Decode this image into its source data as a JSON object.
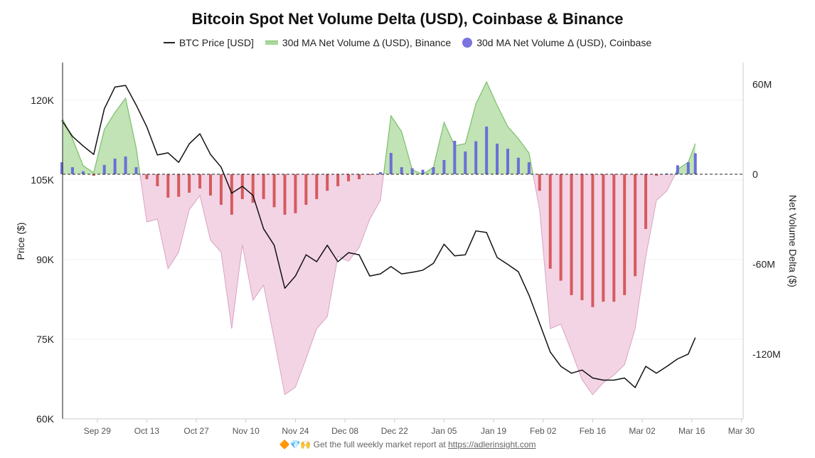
{
  "chart_data": {
    "type": "bar+area+line",
    "title": "Bitcoin Spot Net Volume Delta (USD), Coinbase & Binance",
    "legend_position": "top",
    "legend": [
      {
        "name": "BTC Price [USD]",
        "symbol": "line",
        "color": "#111111"
      },
      {
        "name": "30d MA Net Volume Δ (USD), Binance",
        "symbol": "area",
        "color": "#8cc97a"
      },
      {
        "name": "30d MA Net Volume Δ (USD), Coinbase",
        "symbol": "dot",
        "color": "#7b73e0"
      }
    ],
    "ylabel_left": "Price ($)",
    "ylabel_right": "Net Volume Delta ($)",
    "ylim_left": [
      60000,
      128000
    ],
    "ylim_right": [
      -160000000,
      67000000
    ],
    "y_ticks_left": [
      "60K",
      "75K",
      "90K",
      "105K",
      "120K"
    ],
    "y_ticks_right": [
      "-120M",
      "-60M",
      "0",
      "60M"
    ],
    "x_ticks": [
      "Sep 29",
      "Oct 13",
      "Oct 27",
      "Nov 10",
      "Nov 24",
      "Dec 08",
      "Dec 22",
      "Jan 05",
      "Jan 19",
      "Feb 02",
      "Feb 16",
      "Mar 02",
      "Mar 16",
      "Mar 30"
    ],
    "grid": "horizontal",
    "colors": {
      "price": "#111111",
      "binance_pos_fill": "#b6dea8",
      "binance_pos_stroke": "#7cbf6a",
      "binance_neg_fill": "#f2cfe2",
      "binance_neg_stroke": "#d9a3c3",
      "coinbase_pos": "#6b6fd6",
      "coinbase_neg": "#d65a5e"
    },
    "x": [
      "Sep 19",
      "Sep 22",
      "Sep 25",
      "Sep 28",
      "Oct 01",
      "Oct 04",
      "Oct 07",
      "Oct 10",
      "Oct 13",
      "Oct 16",
      "Oct 19",
      "Oct 22",
      "Oct 25",
      "Oct 28",
      "Oct 31",
      "Nov 03",
      "Nov 06",
      "Nov 09",
      "Nov 12",
      "Nov 15",
      "Nov 18",
      "Nov 21",
      "Nov 24",
      "Nov 27",
      "Nov 30",
      "Dec 03",
      "Dec 06",
      "Dec 09",
      "Dec 12",
      "Dec 15",
      "Dec 18",
      "Dec 21",
      "Dec 24",
      "Dec 27",
      "Dec 30",
      "Jan 02",
      "Jan 05",
      "Jan 08",
      "Jan 11",
      "Jan 14",
      "Jan 17",
      "Jan 20",
      "Jan 23",
      "Jan 26",
      "Jan 29",
      "Feb 01",
      "Feb 04",
      "Feb 07",
      "Feb 10",
      "Feb 13",
      "Feb 16",
      "Feb 19",
      "Feb 22",
      "Feb 25",
      "Feb 28",
      "Mar 03",
      "Mar 06",
      "Mar 09",
      "Mar 12",
      "Mar 15",
      "Mar 17"
    ],
    "series": [
      {
        "name": "BTC Price [USD]",
        "axis": "left",
        "unit": "USD",
        "values": [
          116200,
          113200,
          111400,
          109800,
          118400,
          122500,
          122800,
          119100,
          115000,
          109700,
          110100,
          108300,
          111800,
          113700,
          109800,
          107400,
          102500,
          103800,
          102100,
          95800,
          92700,
          84600,
          86900,
          90900,
          89600,
          92700,
          89600,
          91300,
          90900,
          86900,
          87300,
          88700,
          87300,
          87600,
          88000,
          89300,
          92900,
          90700,
          90900,
          95400,
          95100,
          90400,
          89100,
          87700,
          83300,
          78000,
          72600,
          69900,
          68600,
          69200,
          67700,
          67300,
          67300,
          67700,
          65900,
          69900,
          68600,
          69900,
          71300,
          72200,
          75300
        ]
      },
      {
        "name": "30d MA Net Volume Δ (USD), Binance",
        "axis": "right",
        "unit": "USD",
        "values": [
          37900000,
          23700000,
          5700000,
          1000000,
          29900000,
          41200000,
          50700000,
          17500000,
          -31800000,
          -29900000,
          -63000000,
          -52000000,
          -23700000,
          -14200000,
          -44000000,
          -52000000,
          -103000000,
          -47000000,
          -84000000,
          -74000000,
          -110000000,
          -147000000,
          -142000000,
          -123000000,
          -103000000,
          -95000000,
          -55000000,
          -58000000,
          -49000000,
          -30000000,
          -17500000,
          39000000,
          28400000,
          3000000,
          0,
          4700000,
          34600000,
          19000000,
          20400000,
          47000000,
          61600000,
          46000000,
          31800000,
          23700000,
          14200000,
          -23700000,
          -103000000,
          -100000000,
          -118000000,
          -137000000,
          -147000000,
          -139000000,
          -134000000,
          -127000000,
          -103000000,
          -55000000,
          -17500000,
          -11000000,
          3300000,
          8000000,
          20400000
        ]
      },
      {
        "name": "30d MA Net Volume Δ (USD), Coinbase",
        "axis": "right",
        "unit": "USD",
        "values": [
          8000000,
          4700000,
          2000000,
          -1000000,
          6200000,
          10400000,
          11800000,
          4700000,
          -3300000,
          -8000000,
          -15600000,
          -15000000,
          -12300000,
          -9500000,
          -14200000,
          -20400000,
          -27000000,
          -16600000,
          -19000000,
          -16600000,
          -22000000,
          -27000000,
          -26000000,
          -20400000,
          -16600000,
          -11000000,
          -8000000,
          -4700000,
          -3300000,
          -500000,
          1400000,
          14200000,
          4700000,
          4000000,
          3000000,
          4700000,
          9500000,
          22300000,
          15200000,
          22000000,
          31800000,
          20400000,
          17000000,
          11000000,
          8000000,
          -11000000,
          -63000000,
          -71000000,
          -80600000,
          -84000000,
          -88600000,
          -85000000,
          -85000000,
          -80600000,
          -68000000,
          -36500000,
          -1000000,
          500000,
          6000000,
          8000000,
          14000000
        ]
      }
    ]
  },
  "footer": {
    "emoji": "🔶💎🙌",
    "text": "Get the full weekly market report at",
    "link": "https://adlerinsight.com"
  }
}
